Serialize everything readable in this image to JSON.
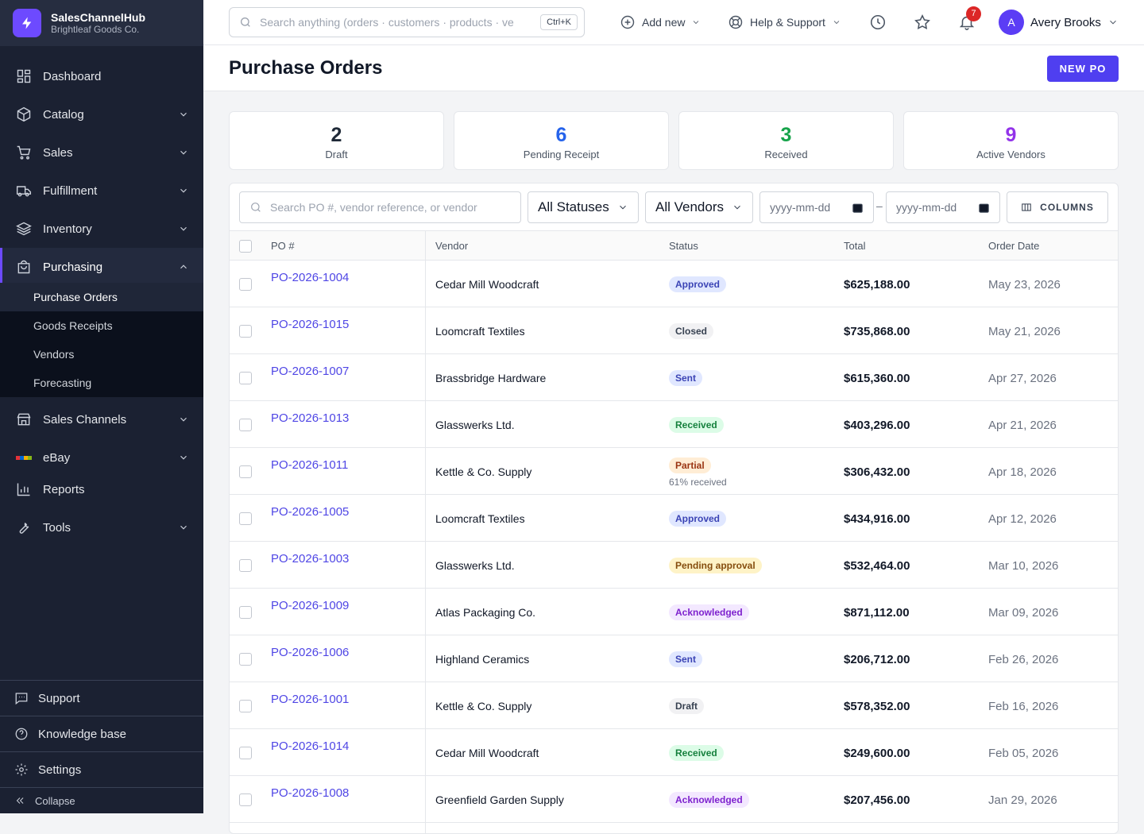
{
  "sidebar": {
    "brand": {
      "name": "SalesChannelHub",
      "org": "Brightleaf Goods Co."
    },
    "nav": [
      "Dashboard",
      "Catalog",
      "Sales",
      "Fulfillment",
      "Inventory",
      "Purchasing"
    ],
    "subnav": [
      "Purchase Orders",
      "Goods Receipts",
      "Vendors",
      "Forecasting"
    ],
    "nav2": [
      "Sales Channels",
      "eBay",
      "Reports",
      "Tools"
    ],
    "footer": [
      "Support",
      "Knowledge base",
      "Settings",
      "Collapse"
    ]
  },
  "topbar": {
    "search_placeholder": "Search anything (orders · customers · products · ve",
    "shortcut": "Ctrl+K",
    "add_new": "Add new",
    "help": "Help & Support",
    "notifications": 7,
    "user_initial": "A",
    "user_name": "Avery Brooks"
  },
  "header": {
    "title": "Purchase Orders",
    "button": "NEW PO"
  },
  "stats": [
    {
      "value": 2,
      "label": "Draft",
      "color": "#1f2937"
    },
    {
      "value": 6,
      "label": "Pending Receipt",
      "color": "#2563eb"
    },
    {
      "value": 3,
      "label": "Received",
      "color": "#16a34a"
    },
    {
      "value": 9,
      "label": "Active Vendors",
      "color": "#9333ea"
    }
  ],
  "filters": {
    "search_placeholder": "Search PO #, vendor reference, or vendor",
    "status": "All Statuses",
    "vendor": "All Vendors",
    "date_placeholder": "yyyy-mm-dd",
    "date_separator": "–",
    "columns": "COLUMNS"
  },
  "status_colors": {
    "Approved": [
      "#e0e7ff",
      "#3b44b5"
    ],
    "Closed": [
      "#f1f1f3",
      "#374151"
    ],
    "Sent": [
      "#e0e7ff",
      "#3b44b5"
    ],
    "Received": [
      "#dcfce7",
      "#15803d"
    ],
    "Partial": [
      "#ffedd5",
      "#9a3412"
    ],
    "Pending approval": [
      "#fef3c7",
      "#854d0e"
    ],
    "Acknowledged": [
      "#f3e8ff",
      "#7e22ce"
    ],
    "Draft": [
      "#f1f1f3",
      "#374151"
    ]
  },
  "table": {
    "columns": [
      "PO #",
      "Vendor",
      "Status",
      "Total",
      "Order Date"
    ],
    "rows": [
      {
        "po": "PO-2026-1004",
        "vendor": "Cedar Mill Woodcraft",
        "status": "Approved",
        "total": "$625,188.00",
        "date": "May 23, 2026"
      },
      {
        "po": "PO-2026-1015",
        "vendor": "Loomcraft Textiles",
        "status": "Closed",
        "total": "$735,868.00",
        "date": "May 21, 2026"
      },
      {
        "po": "PO-2026-1007",
        "vendor": "Brassbridge Hardware",
        "status": "Sent",
        "total": "$615,360.00",
        "date": "Apr 27, 2026"
      },
      {
        "po": "PO-2026-1013",
        "vendor": "Glasswerks Ltd.",
        "status": "Received",
        "total": "$403,296.00",
        "date": "Apr 21, 2026"
      },
      {
        "po": "PO-2026-1011",
        "vendor": "Kettle & Co. Supply",
        "status": "Partial",
        "status_note": "61% received",
        "total": "$306,432.00",
        "date": "Apr 18, 2026"
      },
      {
        "po": "PO-2026-1005",
        "vendor": "Loomcraft Textiles",
        "status": "Approved",
        "total": "$434,916.00",
        "date": "Apr 12, 2026"
      },
      {
        "po": "PO-2026-1003",
        "vendor": "Glasswerks Ltd.",
        "status": "Pending approval",
        "total": "$532,464.00",
        "date": "Mar 10, 2026"
      },
      {
        "po": "PO-2026-1009",
        "vendor": "Atlas Packaging Co.",
        "status": "Acknowledged",
        "total": "$871,112.00",
        "date": "Mar 09, 2026"
      },
      {
        "po": "PO-2026-1006",
        "vendor": "Highland Ceramics",
        "status": "Sent",
        "total": "$206,712.00",
        "date": "Feb 26, 2026"
      },
      {
        "po": "PO-2026-1001",
        "vendor": "Kettle & Co. Supply",
        "status": "Draft",
        "total": "$578,352.00",
        "date": "Feb 16, 2026"
      },
      {
        "po": "PO-2026-1014",
        "vendor": "Cedar Mill Woodcraft",
        "status": "Received",
        "total": "$249,600.00",
        "date": "Feb 05, 2026"
      },
      {
        "po": "PO-2026-1008",
        "vendor": "Greenfield Garden Supply",
        "status": "Acknowledged",
        "total": "$207,456.00",
        "date": "Jan 29, 2026"
      }
    ]
  }
}
